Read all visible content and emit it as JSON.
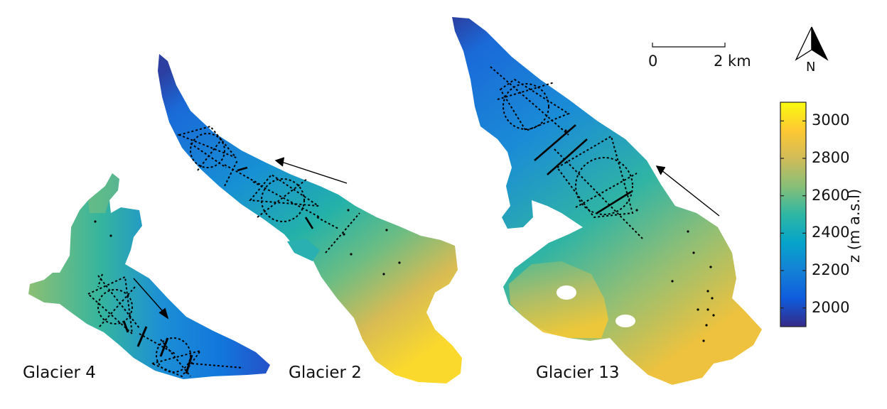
{
  "glaciers": [
    {
      "label": "Glacier 4"
    },
    {
      "label": "Glacier 2"
    },
    {
      "label": "Glacier 13"
    }
  ],
  "scale_bar": {
    "start_label": "0",
    "end_label": "2 km"
  },
  "north_arrow": {
    "label": "N",
    "icon": "north-arrow-icon"
  },
  "colorbar": {
    "title": "z (m a.s.l)",
    "min": 1900,
    "max": 3100,
    "ticks": [
      "2000",
      "2200",
      "2400",
      "2600",
      "2800",
      "3000"
    ],
    "colors": [
      "#352a87",
      "#0f5cdd",
      "#1481d6",
      "#06a4ca",
      "#2eb7a4",
      "#87bf77",
      "#d1bb59",
      "#fec832",
      "#f9fb0e"
    ]
  }
}
